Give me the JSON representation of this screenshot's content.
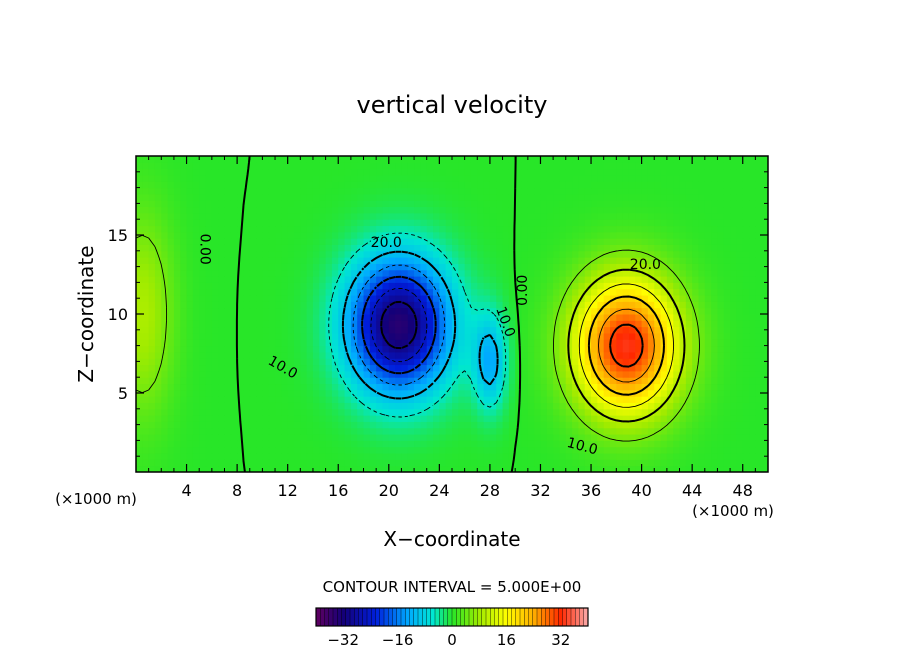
{
  "chart_data": {
    "type": "heatmap",
    "title": "vertical velocity",
    "xlabel": "X−coordinate",
    "ylabel": "Z−coordinate",
    "x_units": "(×1000 m)",
    "z_units": "(×1000 m)",
    "xlim": [
      0,
      50
    ],
    "ylim": [
      0,
      20
    ],
    "x_ticks": [
      4,
      8,
      12,
      16,
      20,
      24,
      28,
      32,
      36,
      40,
      44,
      48
    ],
    "y_ticks": [
      5,
      10,
      15
    ],
    "contour_interval_text": "CONTOUR INTERVAL = 5.000E+00",
    "contour_labels": [
      {
        "text": "0.00",
        "x": 5.4,
        "z": 14.1,
        "rotate": 90
      },
      {
        "text": "0.00",
        "x": 30.6,
        "z": 11.5,
        "rotate": -90
      },
      {
        "text": "20.0",
        "x": 19.8,
        "z": 14.5,
        "rotate": 0
      },
      {
        "text": "10.0",
        "x": 11.6,
        "z": 6.6,
        "rotate": 30
      },
      {
        "text": "10.0",
        "x": 29.2,
        "z": 9.5,
        "rotate": 70
      },
      {
        "text": "20.0",
        "x": 40.3,
        "z": 13.1,
        "rotate": 0
      },
      {
        "text": "10.0",
        "x": 35.3,
        "z": 1.6,
        "rotate": 15
      }
    ],
    "field_components": [
      {
        "kind": "downdraft",
        "x": 20.8,
        "z": 9.3,
        "amp": -34,
        "sx": 4.0,
        "sz": 4.2
      },
      {
        "kind": "downdraft",
        "x": 28.0,
        "z": 7.0,
        "amp": -12,
        "sx": 1.3,
        "sz": 3.0
      },
      {
        "kind": "updraft",
        "x": 38.8,
        "z": 8.0,
        "amp": 33,
        "sx": 4.2,
        "sz": 4.4
      },
      {
        "kind": "updraft",
        "x": 0.5,
        "z": 10.0,
        "amp": 9,
        "sx": 2.5,
        "sz": 6.5
      }
    ],
    "colorbar": {
      "min": -40,
      "max": 40,
      "ticks": [
        -32,
        -16,
        0,
        16,
        32
      ],
      "tick_labels": [
        "−32",
        "−16",
        "0",
        "16",
        "32"
      ]
    }
  }
}
